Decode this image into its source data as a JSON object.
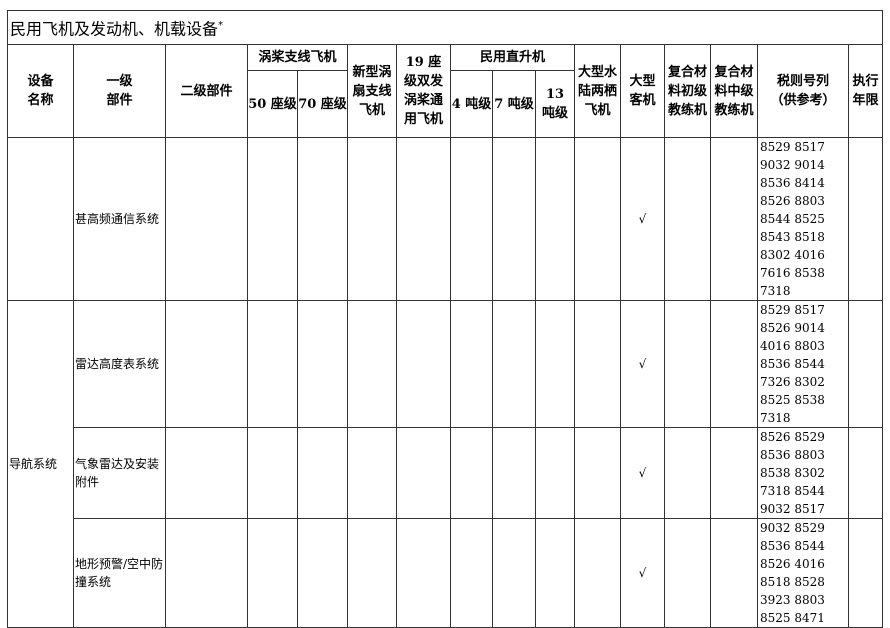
{
  "title": "民用飞机及发动机、机载设备",
  "title_mark": "*",
  "headers": {
    "equipment_name": "设备名称",
    "level1": "一级部件",
    "level2": "二级部件",
    "turboprop_group": "涡桨支线飞机",
    "seat50": "50 座级",
    "seat70": "70 座级",
    "turbofan": "新型涡扇支线飞机",
    "seat19": "19 座级双发涡桨通用飞机",
    "heli_group": "民用直升机",
    "ton4": "4 吨级",
    "ton7": "7 吨级",
    "ton13": "13 吨级",
    "amphibian": "大型水陆两栖飞机",
    "large_airliner": "大型客机",
    "composite_primary": "复合材料初级教练机",
    "composite_intermediate": "复合材料中级教练机",
    "tariff": "税则号列（供参考）",
    "period": "执行年限"
  },
  "group_name": "导航系统",
  "rows": [
    {
      "level1": "甚高频通信系统",
      "check": "√",
      "codes": "8529 8517 9032 9014 8536 8414 8526 8803 8544 8525 8543 8518 8302 4016 7616 8538 7318"
    },
    {
      "level1": "雷达高度表系统",
      "check": "√",
      "codes": "8529 8517 8526 9014 4016 8803 8536 8544 7326 8302 8525 8538 7318"
    },
    {
      "level1": "气象雷达及安装附件",
      "check": "√",
      "codes": "8526 8529 8536 8803 8538 8302 7318 8544 9032 8517"
    },
    {
      "level1": "地形预警/空中防撞系统",
      "check": "√",
      "codes": "9032 8529 8536 8544 8526 4016 8518 8528 3923 8803 8525 8471"
    }
  ]
}
